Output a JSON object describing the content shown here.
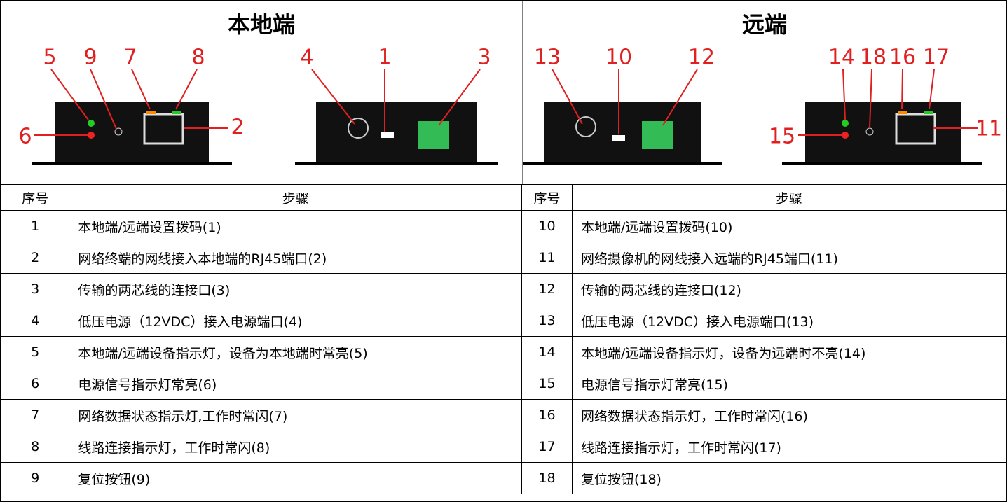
{
  "panels": [
    {
      "title": "本地端",
      "callouts": [
        "5",
        "9",
        "7",
        "8",
        "6",
        "4",
        "1",
        "3",
        "2"
      ]
    },
    {
      "title": "远端",
      "callouts": [
        "13",
        "10",
        "12",
        "14",
        "18",
        "16",
        "17",
        "15",
        "11"
      ]
    }
  ],
  "table": {
    "header": [
      "序号",
      "步骤",
      "序号",
      "步骤"
    ],
    "rows": [
      [
        "1",
        "本地端/远端设置拨码(1)",
        "10",
        "本地端/远端设置拨码(10)"
      ],
      [
        "2",
        "网络终端的网线接入本地端的RJ45端口(2)",
        "11",
        "网络摄像机的网线接入远端的RJ45端口(11)"
      ],
      [
        "3",
        "传输的两芯线的连接口(3)",
        "12",
        "传输的两芯线的连接口(12)"
      ],
      [
        "4",
        "低压电源（12VDC）接入电源端口(4)",
        "13",
        "低压电源（12VDC）接入电源端口(13)"
      ],
      [
        "5",
        "本地端/远端设备指示灯，设备为本地端时常亮(5)",
        "14",
        "本地端/远端设备指示灯，设备为远端时不亮(14)"
      ],
      [
        "6",
        "电源信号指示灯常亮(6)",
        "15",
        "电源信号指示灯常亮(15)"
      ],
      [
        "7",
        "网络数据状态指示灯,工作时常闪(7)",
        "16",
        "网络数据状态指示灯，工作时常闪(16)"
      ],
      [
        "8",
        "线路连接指示灯，工作时常闪(8)",
        "17",
        "线路连接指示灯，工作时常闪(17)"
      ],
      [
        "9",
        "复位按钮(9)",
        "18",
        "复位按钮(18)"
      ]
    ]
  }
}
